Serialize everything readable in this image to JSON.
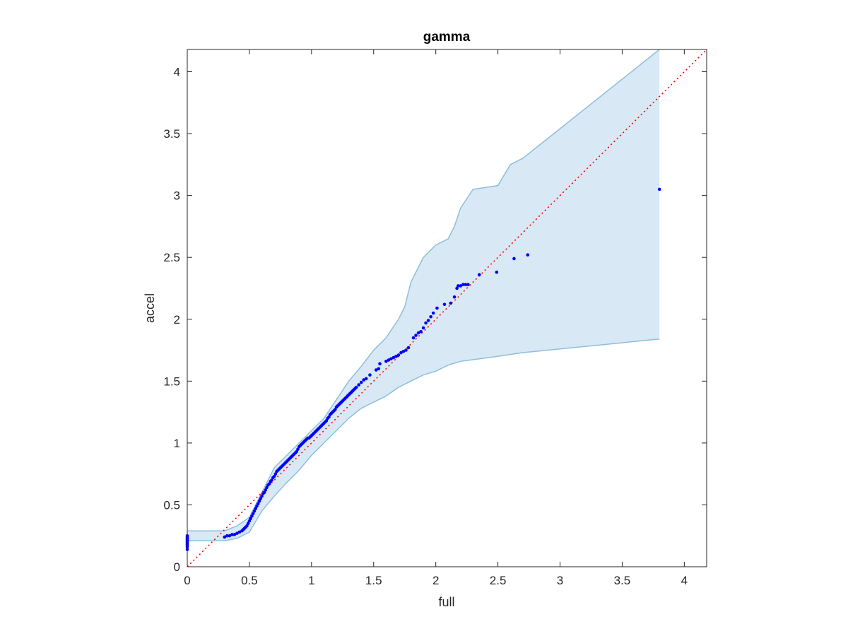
{
  "chart_data": {
    "type": "scatter",
    "title": "gamma",
    "xlabel": "full",
    "ylabel": "accel",
    "xlim": [
      0,
      4.18
    ],
    "ylim": [
      0,
      4.18
    ],
    "xticks": [
      0,
      0.5,
      1,
      1.5,
      2,
      2.5,
      3,
      3.5,
      4
    ],
    "yticks": [
      0,
      0.5,
      1,
      1.5,
      2,
      2.5,
      3,
      3.5,
      4
    ],
    "xtick_labels": [
      "0",
      "0.5",
      "1",
      "1.5",
      "2",
      "2.5",
      "3",
      "3.5",
      "4"
    ],
    "ytick_labels": [
      "0",
      "0.5",
      "1",
      "1.5",
      "2",
      "2.5",
      "3",
      "3.5",
      "4"
    ],
    "grid": false,
    "colors": {
      "points": "#0000ff",
      "reference_line": "#ff0000",
      "band_fill": "#d8e8f4",
      "band_edge": "#8dbfdd",
      "axes": "#262626"
    },
    "reference_line": {
      "style": "dotted",
      "x": [
        0,
        4.18
      ],
      "y": [
        0,
        4.18
      ]
    },
    "confidence_band": {
      "upper": [
        [
          0,
          0.29
        ],
        [
          0.3,
          0.29
        ],
        [
          0.4,
          0.33
        ],
        [
          0.5,
          0.4
        ],
        [
          0.6,
          0.6
        ],
        [
          0.7,
          0.8
        ],
        [
          0.8,
          0.9
        ],
        [
          0.9,
          1.0
        ],
        [
          1.0,
          1.1
        ],
        [
          1.1,
          1.2
        ],
        [
          1.2,
          1.35
        ],
        [
          1.3,
          1.5
        ],
        [
          1.4,
          1.62
        ],
        [
          1.5,
          1.75
        ],
        [
          1.6,
          1.85
        ],
        [
          1.7,
          2.0
        ],
        [
          1.75,
          2.1
        ],
        [
          1.8,
          2.3
        ],
        [
          1.9,
          2.5
        ],
        [
          2.0,
          2.6
        ],
        [
          2.1,
          2.65
        ],
        [
          2.15,
          2.75
        ],
        [
          2.2,
          2.9
        ],
        [
          2.3,
          3.05
        ],
        [
          2.5,
          3.08
        ],
        [
          2.6,
          3.25
        ],
        [
          2.7,
          3.3
        ],
        [
          3.8,
          4.18
        ]
      ],
      "lower": [
        [
          0,
          0.21
        ],
        [
          0.3,
          0.21
        ],
        [
          0.4,
          0.23
        ],
        [
          0.5,
          0.28
        ],
        [
          0.6,
          0.45
        ],
        [
          0.7,
          0.57
        ],
        [
          0.8,
          0.68
        ],
        [
          0.9,
          0.78
        ],
        [
          1.0,
          0.9
        ],
        [
          1.1,
          1.0
        ],
        [
          1.2,
          1.1
        ],
        [
          1.3,
          1.2
        ],
        [
          1.4,
          1.28
        ],
        [
          1.5,
          1.33
        ],
        [
          1.6,
          1.38
        ],
        [
          1.7,
          1.45
        ],
        [
          1.8,
          1.5
        ],
        [
          1.9,
          1.55
        ],
        [
          2.0,
          1.58
        ],
        [
          2.1,
          1.63
        ],
        [
          2.2,
          1.66
        ],
        [
          2.5,
          1.7
        ],
        [
          2.7,
          1.73
        ],
        [
          3.0,
          1.76
        ],
        [
          3.8,
          1.84
        ]
      ]
    },
    "series": [
      {
        "x": [
          0,
          0,
          0,
          0,
          0,
          0,
          0,
          0,
          0,
          0,
          0,
          0.3,
          0.32,
          0.34,
          0.36,
          0.38,
          0.4,
          0.42,
          0.44,
          0.45,
          0.46,
          0.47,
          0.48,
          0.49,
          0.5,
          0.51,
          0.52,
          0.53,
          0.54,
          0.55,
          0.56,
          0.57,
          0.58,
          0.59,
          0.6,
          0.61,
          0.62,
          0.63,
          0.64,
          0.65,
          0.66,
          0.67,
          0.68,
          0.69,
          0.7,
          0.71,
          0.72,
          0.73,
          0.74,
          0.75,
          0.76,
          0.77,
          0.78,
          0.79,
          0.8,
          0.81,
          0.82,
          0.83,
          0.84,
          0.85,
          0.86,
          0.87,
          0.88,
          0.89,
          0.9,
          0.91,
          0.92,
          0.93,
          0.94,
          0.95,
          0.96,
          0.97,
          0.98,
          0.99,
          1.0,
          1.01,
          1.02,
          1.03,
          1.04,
          1.05,
          1.06,
          1.07,
          1.08,
          1.09,
          1.1,
          1.11,
          1.12,
          1.13,
          1.14,
          1.15,
          1.16,
          1.17,
          1.18,
          1.19,
          1.2,
          1.21,
          1.22,
          1.23,
          1.24,
          1.25,
          1.26,
          1.27,
          1.28,
          1.29,
          1.3,
          1.31,
          1.32,
          1.33,
          1.34,
          1.35,
          1.36,
          1.38,
          1.4,
          1.42,
          1.44,
          1.47,
          1.52,
          1.54,
          1.55,
          1.6,
          1.62,
          1.64,
          1.66,
          1.68,
          1.7,
          1.72,
          1.74,
          1.76,
          1.78,
          1.82,
          1.84,
          1.86,
          1.88,
          1.9,
          1.92,
          1.94,
          1.96,
          1.98,
          2.01,
          2.07,
          2.12,
          2.15,
          2.17,
          2.18,
          2.2,
          2.22,
          2.24,
          2.26,
          2.35,
          2.49,
          2.63,
          2.74,
          3.8
        ],
        "y": [
          0.14,
          0.16,
          0.17,
          0.18,
          0.19,
          0.2,
          0.21,
          0.22,
          0.23,
          0.24,
          0.25,
          0.24,
          0.25,
          0.25,
          0.26,
          0.26,
          0.27,
          0.28,
          0.29,
          0.3,
          0.31,
          0.32,
          0.33,
          0.35,
          0.37,
          0.39,
          0.41,
          0.43,
          0.45,
          0.47,
          0.49,
          0.51,
          0.53,
          0.55,
          0.57,
          0.59,
          0.6,
          0.62,
          0.64,
          0.66,
          0.67,
          0.69,
          0.7,
          0.72,
          0.73,
          0.75,
          0.77,
          0.78,
          0.79,
          0.8,
          0.81,
          0.82,
          0.83,
          0.84,
          0.85,
          0.86,
          0.87,
          0.88,
          0.89,
          0.9,
          0.91,
          0.92,
          0.93,
          0.95,
          0.97,
          0.98,
          0.99,
          1.0,
          1.01,
          1.02,
          1.03,
          1.04,
          1.04,
          1.05,
          1.06,
          1.07,
          1.08,
          1.09,
          1.1,
          1.11,
          1.12,
          1.13,
          1.14,
          1.15,
          1.16,
          1.17,
          1.18,
          1.2,
          1.21,
          1.23,
          1.24,
          1.25,
          1.26,
          1.27,
          1.29,
          1.3,
          1.31,
          1.32,
          1.33,
          1.34,
          1.35,
          1.36,
          1.37,
          1.38,
          1.39,
          1.4,
          1.41,
          1.42,
          1.43,
          1.44,
          1.45,
          1.47,
          1.49,
          1.51,
          1.52,
          1.55,
          1.59,
          1.6,
          1.64,
          1.66,
          1.67,
          1.68,
          1.69,
          1.7,
          1.71,
          1.73,
          1.74,
          1.75,
          1.77,
          1.85,
          1.87,
          1.89,
          1.9,
          1.93,
          1.97,
          1.99,
          2.02,
          2.05,
          2.09,
          2.12,
          2.13,
          2.18,
          2.25,
          2.27,
          2.27,
          2.28,
          2.28,
          2.28,
          2.36,
          2.38,
          2.49,
          2.52,
          3.05
        ]
      }
    ]
  }
}
